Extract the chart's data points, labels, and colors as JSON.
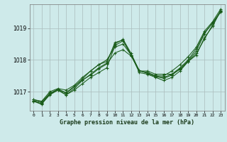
{
  "xlabel": "Graphe pression niveau de la mer (hPa)",
  "bg_color": "#ceeaea",
  "grid_color": "#aabbbb",
  "line_color": "#1a5c1a",
  "xlim": [
    -0.5,
    23.5
  ],
  "ylim": [
    1016.4,
    1019.75
  ],
  "yticks": [
    1017,
    1018,
    1019
  ],
  "xticks": [
    0,
    1,
    2,
    3,
    4,
    5,
    6,
    7,
    8,
    9,
    10,
    11,
    12,
    13,
    14,
    15,
    16,
    17,
    18,
    19,
    20,
    21,
    22,
    23
  ],
  "series": [
    [
      1016.7,
      1016.62,
      1016.9,
      1017.05,
      1016.9,
      1017.1,
      1017.35,
      1017.55,
      1017.75,
      1017.9,
      1018.55,
      1018.62,
      1018.15,
      1017.65,
      1017.65,
      1017.55,
      1017.55,
      1017.55,
      1017.7,
      1017.95,
      1018.2,
      1018.65,
      1019.1,
      1019.55
    ],
    [
      1016.72,
      1016.65,
      1016.92,
      1017.07,
      1016.95,
      1017.15,
      1017.4,
      1017.65,
      1017.85,
      1018.0,
      1018.4,
      1018.5,
      1018.15,
      1017.65,
      1017.6,
      1017.5,
      1017.45,
      1017.55,
      1017.75,
      1018.0,
      1018.35,
      1018.85,
      1019.15,
      1019.5
    ],
    [
      1016.75,
      1016.68,
      1016.95,
      1017.08,
      1016.97,
      1017.17,
      1017.37,
      1017.52,
      1017.72,
      1017.87,
      1018.22,
      1018.32,
      1018.12,
      1017.67,
      1017.57,
      1017.47,
      1017.42,
      1017.52,
      1017.72,
      1017.97,
      1018.27,
      1018.82,
      1019.17,
      1019.52
    ],
    [
      1016.7,
      1016.6,
      1016.95,
      1017.05,
      1016.9,
      1017.05,
      1017.25,
      1017.45,
      1017.6,
      1017.75,
      1018.45,
      1018.6,
      1018.15,
      1017.6,
      1017.55,
      1017.45,
      1017.35,
      1017.45,
      1017.65,
      1017.95,
      1018.15,
      1018.7,
      1019.05,
      1019.55
    ],
    [
      1016.75,
      1016.7,
      1017.0,
      1017.1,
      1017.05,
      1017.2,
      1017.45,
      1017.65,
      1017.85,
      1017.95,
      1018.5,
      1018.65,
      1018.2,
      1017.65,
      1017.6,
      1017.5,
      1017.5,
      1017.65,
      1017.85,
      1018.1,
      1018.4,
      1018.9,
      1019.2,
      1019.6
    ]
  ]
}
